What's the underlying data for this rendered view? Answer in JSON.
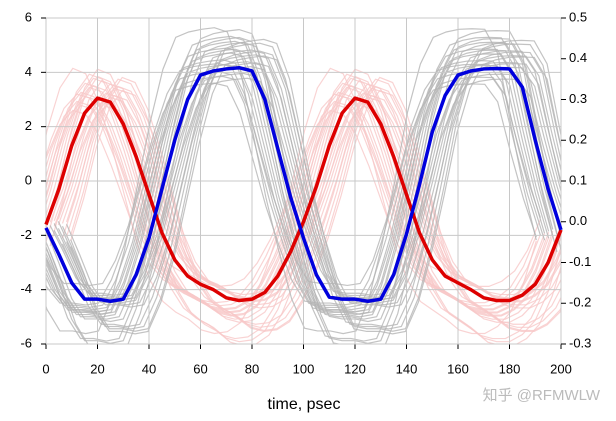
{
  "chart_data": {
    "type": "line",
    "x_label": "time, psec",
    "annotation": "知乎 @RFMWLW",
    "x": [
      0,
      5,
      10,
      15,
      20,
      25,
      30,
      35,
      40,
      45,
      50,
      55,
      60,
      65,
      70,
      75,
      80,
      85,
      90,
      95,
      100,
      105,
      110,
      115,
      120,
      125,
      130,
      135,
      140,
      145,
      150,
      155,
      160,
      165,
      170,
      175,
      180,
      185,
      190,
      195,
      200
    ],
    "series": [
      {
        "color": "#dd0000",
        "axis": "y",
        "values": [
          -1.6,
          -0.3,
          1.3,
          2.5,
          3.05,
          2.9,
          2.1,
          0.9,
          -0.5,
          -1.9,
          -2.9,
          -3.5,
          -3.8,
          -4.0,
          -4.3,
          -4.4,
          -4.35,
          -4.1,
          -3.5,
          -2.6,
          -1.5,
          -0.2,
          1.3,
          2.5,
          3.05,
          2.9,
          2.1,
          0.9,
          -0.5,
          -1.9,
          -2.9,
          -3.5,
          -3.75,
          -4.0,
          -4.3,
          -4.4,
          -4.4,
          -4.2,
          -3.8,
          -3.0,
          -1.8
        ]
      },
      {
        "color": "#0000dd",
        "axis": "y2",
        "values": [
          -0.015,
          -0.08,
          -0.15,
          -0.19,
          -0.19,
          -0.195,
          -0.19,
          -0.13,
          -0.04,
          0.08,
          0.2,
          0.3,
          0.36,
          0.37,
          0.375,
          0.378,
          0.37,
          0.3,
          0.18,
          0.06,
          -0.04,
          -0.13,
          -0.185,
          -0.19,
          -0.19,
          -0.195,
          -0.19,
          -0.13,
          -0.03,
          0.09,
          0.22,
          0.31,
          0.36,
          0.37,
          0.375,
          0.376,
          0.375,
          0.33,
          0.2,
          0.08,
          -0.02
        ]
      }
    ],
    "xlim": [
      0,
      200
    ],
    "xticks": [
      0,
      20,
      40,
      60,
      80,
      100,
      120,
      140,
      160,
      180,
      200
    ],
    "ylim": [
      -6,
      6
    ],
    "yticks": [
      -6,
      -4,
      -2,
      0,
      2,
      4,
      6
    ],
    "y2lim": [
      -0.3,
      0.5
    ],
    "y2ticks": [
      -0.3,
      -0.2,
      -0.1,
      {
        "value": 0,
        "label": "0.0"
      },
      0.1,
      0.2,
      0.3,
      0.4,
      0.5
    ],
    "grid": true
  }
}
